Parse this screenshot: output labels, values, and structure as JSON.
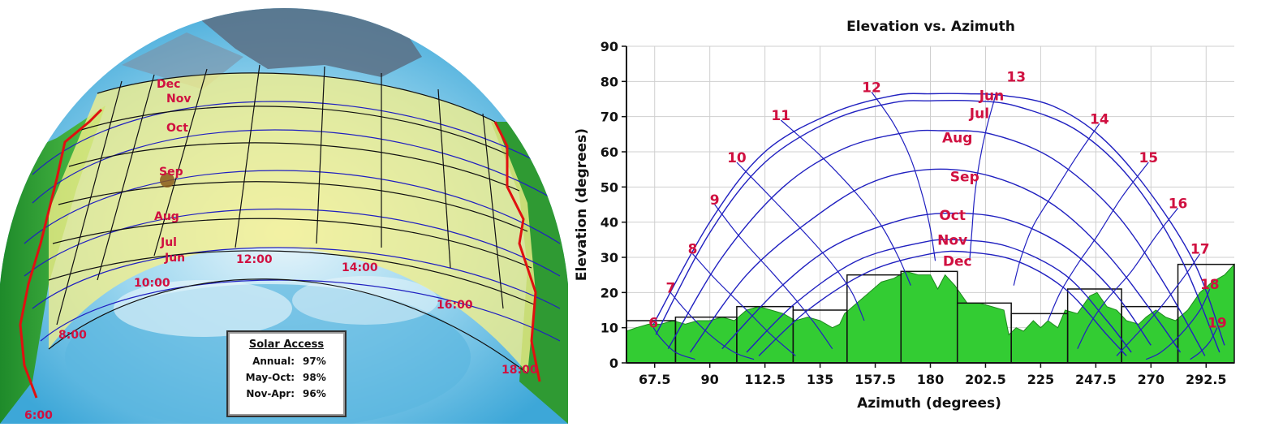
{
  "colors": {
    "curve_red": "#d01040",
    "path_blue": "#2020c0",
    "obstruction_green": "#33cc33",
    "band_yellow": "#f5ef8a",
    "sky_blue": "#6fc7ea"
  },
  "fisheye": {
    "month_labels": [
      "Dec",
      "Nov",
      "Oct",
      "Sep",
      "Aug",
      "Jul",
      "Jun"
    ],
    "hour_labels": [
      "6:00",
      "8:00",
      "10:00",
      "12:00",
      "14:00",
      "16:00",
      "18:00"
    ]
  },
  "solar_access": {
    "title": "Solar Access",
    "rows": [
      {
        "label": "Annual:",
        "value": "97%"
      },
      {
        "label": "May-Oct:",
        "value": "98%"
      },
      {
        "label": "Nov-Apr:",
        "value": "96%"
      }
    ]
  },
  "chart_data": {
    "type": "area",
    "title": "Elevation vs. Azimuth",
    "xlabel": "Azimuth (degrees)",
    "ylabel": "Elevation (degrees)",
    "xlim": [
      56,
      304
    ],
    "ylim": [
      0,
      90
    ],
    "x_ticks": [
      "67.5",
      "90",
      "112.5",
      "135",
      "157.5",
      "180",
      "202.5",
      "225",
      "247.5",
      "270",
      "292.5"
    ],
    "y_ticks": [
      "0",
      "10",
      "20",
      "30",
      "40",
      "50",
      "60",
      "70",
      "80",
      "90"
    ],
    "grid": true,
    "sun_path_months": [
      {
        "label": "Jun",
        "points": [
          [
            67,
            11
          ],
          [
            90,
            40
          ],
          [
            112.5,
            60
          ],
          [
            140,
            71
          ],
          [
            165,
            76
          ],
          [
            180,
            76.5
          ],
          [
            195,
            76.5
          ],
          [
            210,
            76
          ],
          [
            230,
            73
          ],
          [
            250,
            64
          ],
          [
            270,
            48
          ],
          [
            288,
            28
          ],
          [
            300,
            5
          ]
        ]
      },
      {
        "label": "Jul",
        "points": [
          [
            68,
            8
          ],
          [
            90,
            37
          ],
          [
            112.5,
            57
          ],
          [
            140,
            69
          ],
          [
            165,
            74
          ],
          [
            180,
            74.5
          ],
          [
            197,
            74.5
          ],
          [
            215,
            73
          ],
          [
            240,
            66
          ],
          [
            262,
            52
          ],
          [
            282,
            30
          ],
          [
            298,
            3
          ]
        ]
      },
      {
        "label": "Aug",
        "points": [
          [
            73,
            4
          ],
          [
            95,
            30
          ],
          [
            120,
            50
          ],
          [
            145,
            61
          ],
          [
            170,
            65.5
          ],
          [
            185,
            66
          ],
          [
            205,
            65
          ],
          [
            230,
            58
          ],
          [
            255,
            43
          ],
          [
            275,
            23
          ],
          [
            292,
            2
          ]
        ]
      },
      {
        "label": "Sep",
        "points": [
          [
            82,
            3
          ],
          [
            105,
            25
          ],
          [
            130,
            40
          ],
          [
            155,
            51
          ],
          [
            180,
            55
          ],
          [
            205,
            53
          ],
          [
            230,
            45
          ],
          [
            252,
            31
          ],
          [
            272,
            13
          ],
          [
            282,
            3
          ]
        ]
      },
      {
        "label": "Oct",
        "points": [
          [
            95,
            4
          ],
          [
            118,
            21
          ],
          [
            140,
            33
          ],
          [
            165,
            40
          ],
          [
            185,
            42.5
          ],
          [
            210,
            41
          ],
          [
            235,
            33
          ],
          [
            255,
            20
          ],
          [
            270,
            5
          ]
        ]
      },
      {
        "label": "Nov",
        "points": [
          [
            105,
            3
          ],
          [
            125,
            17
          ],
          [
            150,
            29
          ],
          [
            175,
            34
          ],
          [
            190,
            35
          ],
          [
            212,
            33
          ],
          [
            235,
            25
          ],
          [
            252,
            12
          ],
          [
            262,
            3
          ]
        ]
      },
      {
        "label": "Dec",
        "points": [
          [
            110,
            2
          ],
          [
            130,
            15
          ],
          [
            155,
            26
          ],
          [
            180,
            31
          ],
          [
            195,
            31.5
          ],
          [
            215,
            29
          ],
          [
            235,
            21
          ],
          [
            252,
            8
          ],
          [
            260,
            2
          ]
        ]
      }
    ],
    "hour_labels": [
      {
        "label": "6",
        "x": 67,
        "y": 10
      },
      {
        "label": "7",
        "x": 74,
        "y": 20
      },
      {
        "label": "8",
        "x": 83,
        "y": 31
      },
      {
        "label": "9",
        "x": 92,
        "y": 45
      },
      {
        "label": "10",
        "x": 101,
        "y": 57
      },
      {
        "label": "11",
        "x": 119,
        "y": 69
      },
      {
        "label": "12",
        "x": 156,
        "y": 77
      },
      {
        "label": "13",
        "x": 215,
        "y": 80
      },
      {
        "label": "14",
        "x": 249,
        "y": 68
      },
      {
        "label": "15",
        "x": 269,
        "y": 57
      },
      {
        "label": "16",
        "x": 281,
        "y": 44
      },
      {
        "label": "17",
        "x": 290,
        "y": 31
      },
      {
        "label": "18",
        "x": 294,
        "y": 21
      },
      {
        "label": "19",
        "x": 297,
        "y": 10
      }
    ],
    "month_labels": [
      {
        "label": "Jun",
        "x": 205,
        "y": 76
      },
      {
        "label": "Jul",
        "x": 200,
        "y": 71
      },
      {
        "label": "Aug",
        "x": 191,
        "y": 64
      },
      {
        "label": "Sep",
        "x": 194,
        "y": 53
      },
      {
        "label": "Oct",
        "x": 189,
        "y": 42
      },
      {
        "label": "Nov",
        "x": 189,
        "y": 35
      },
      {
        "label": "Dec",
        "x": 191,
        "y": 29
      }
    ],
    "hour_lines": [
      {
        "hour": 6,
        "points": [
          [
            67,
            10
          ],
          [
            70,
            7
          ],
          [
            76,
            3
          ],
          [
            84,
            1
          ]
        ]
      },
      {
        "hour": 7,
        "points": [
          [
            74,
            20
          ],
          [
            80,
            15
          ],
          [
            90,
            8
          ],
          [
            100,
            3
          ],
          [
            108,
            1
          ]
        ]
      },
      {
        "hour": 8,
        "points": [
          [
            83,
            31
          ],
          [
            92,
            24
          ],
          [
            105,
            15
          ],
          [
            115,
            8
          ],
          [
            125,
            2
          ]
        ]
      },
      {
        "hour": 9,
        "points": [
          [
            92,
            45
          ],
          [
            102,
            36
          ],
          [
            115,
            26
          ],
          [
            125,
            18
          ],
          [
            133,
            11
          ],
          [
            140,
            4
          ]
        ]
      },
      {
        "hour": 10,
        "points": [
          [
            101,
            57
          ],
          [
            115,
            47
          ],
          [
            130,
            36
          ],
          [
            140,
            28
          ],
          [
            148,
            20
          ],
          [
            153,
            12
          ]
        ]
      },
      {
        "hour": 11,
        "points": [
          [
            119,
            69
          ],
          [
            135,
            59
          ],
          [
            150,
            48
          ],
          [
            160,
            39
          ],
          [
            167,
            30
          ],
          [
            172,
            22
          ]
        ]
      },
      {
        "hour": 12,
        "points": [
          [
            156,
            77
          ],
          [
            165,
            68
          ],
          [
            172,
            58
          ],
          [
            177,
            47
          ],
          [
            180,
            38
          ],
          [
            182,
            29
          ]
        ]
      },
      {
        "hour": 13,
        "points": [
          [
            207,
            77
          ],
          [
            203,
            67
          ],
          [
            200,
            57
          ],
          [
            198,
            47
          ],
          [
            197,
            38
          ],
          [
            196,
            29
          ]
        ]
      },
      {
        "hour": 14,
        "points": [
          [
            249,
            68
          ],
          [
            240,
            59
          ],
          [
            230,
            48
          ],
          [
            222,
            39
          ],
          [
            217,
            30
          ],
          [
            214,
            22
          ]
        ]
      },
      {
        "hour": 15,
        "points": [
          [
            269,
            57
          ],
          [
            258,
            47
          ],
          [
            248,
            36
          ],
          [
            240,
            28
          ],
          [
            233,
            20
          ],
          [
            228,
            12
          ]
        ]
      },
      {
        "hour": 16,
        "points": [
          [
            281,
            44
          ],
          [
            272,
            36
          ],
          [
            262,
            26
          ],
          [
            252,
            18
          ],
          [
            245,
            11
          ],
          [
            240,
            4
          ]
        ]
      },
      {
        "hour": 17,
        "points": [
          [
            290,
            31
          ],
          [
            283,
            24
          ],
          [
            273,
            15
          ],
          [
            264,
            8
          ],
          [
            256,
            2
          ]
        ]
      },
      {
        "hour": 18,
        "points": [
          [
            294,
            21
          ],
          [
            290,
            15
          ],
          [
            282,
            8
          ],
          [
            274,
            3
          ],
          [
            268,
            1
          ]
        ]
      },
      {
        "hour": 19,
        "points": [
          [
            297,
            10
          ],
          [
            294,
            6
          ],
          [
            290,
            3
          ],
          [
            286,
            1
          ]
        ]
      }
    ],
    "horizon_profile": [
      [
        56,
        9
      ],
      [
        60,
        10
      ],
      [
        65,
        11
      ],
      [
        70,
        11
      ],
      [
        75,
        12
      ],
      [
        80,
        11
      ],
      [
        85,
        12
      ],
      [
        90,
        12
      ],
      [
        95,
        13
      ],
      [
        100,
        12
      ],
      [
        105,
        15
      ],
      [
        110,
        16
      ],
      [
        115,
        15
      ],
      [
        120,
        14
      ],
      [
        125,
        12
      ],
      [
        130,
        13
      ],
      [
        135,
        12
      ],
      [
        140,
        10
      ],
      [
        143,
        11
      ],
      [
        145,
        14
      ],
      [
        150,
        17
      ],
      [
        155,
        20
      ],
      [
        160,
        23
      ],
      [
        165,
        24
      ],
      [
        170,
        26
      ],
      [
        175,
        25
      ],
      [
        180,
        25
      ],
      [
        183,
        21
      ],
      [
        186,
        25
      ],
      [
        190,
        22
      ],
      [
        195,
        17
      ],
      [
        200,
        17
      ],
      [
        205,
        16
      ],
      [
        210,
        15
      ],
      [
        212,
        8
      ],
      [
        215,
        10
      ],
      [
        218,
        9
      ],
      [
        222,
        12
      ],
      [
        225,
        10
      ],
      [
        228,
        12
      ],
      [
        232,
        10
      ],
      [
        235,
        15
      ],
      [
        240,
        14
      ],
      [
        245,
        19
      ],
      [
        248,
        20
      ],
      [
        252,
        16
      ],
      [
        256,
        15
      ],
      [
        260,
        12
      ],
      [
        265,
        11
      ],
      [
        268,
        13
      ],
      [
        272,
        15
      ],
      [
        276,
        13
      ],
      [
        280,
        12
      ],
      [
        285,
        15
      ],
      [
        290,
        20
      ],
      [
        295,
        23
      ],
      [
        300,
        25
      ],
      [
        304,
        28
      ]
    ],
    "bin_bars": [
      {
        "x0": 56,
        "x1": 76,
        "value": 12
      },
      {
        "x0": 76,
        "x1": 101,
        "value": 13
      },
      {
        "x0": 101,
        "x1": 124,
        "value": 16
      },
      {
        "x0": 124,
        "x1": 146,
        "value": 15
      },
      {
        "x0": 146,
        "x1": 168,
        "value": 25
      },
      {
        "x0": 168,
        "x1": 191,
        "value": 26
      },
      {
        "x0": 191,
        "x1": 213,
        "value": 17
      },
      {
        "x0": 213,
        "x1": 236,
        "value": 14
      },
      {
        "x0": 236,
        "x1": 258,
        "value": 21
      },
      {
        "x0": 258,
        "x1": 281,
        "value": 16
      },
      {
        "x0": 281,
        "x1": 304,
        "value": 28
      }
    ]
  }
}
